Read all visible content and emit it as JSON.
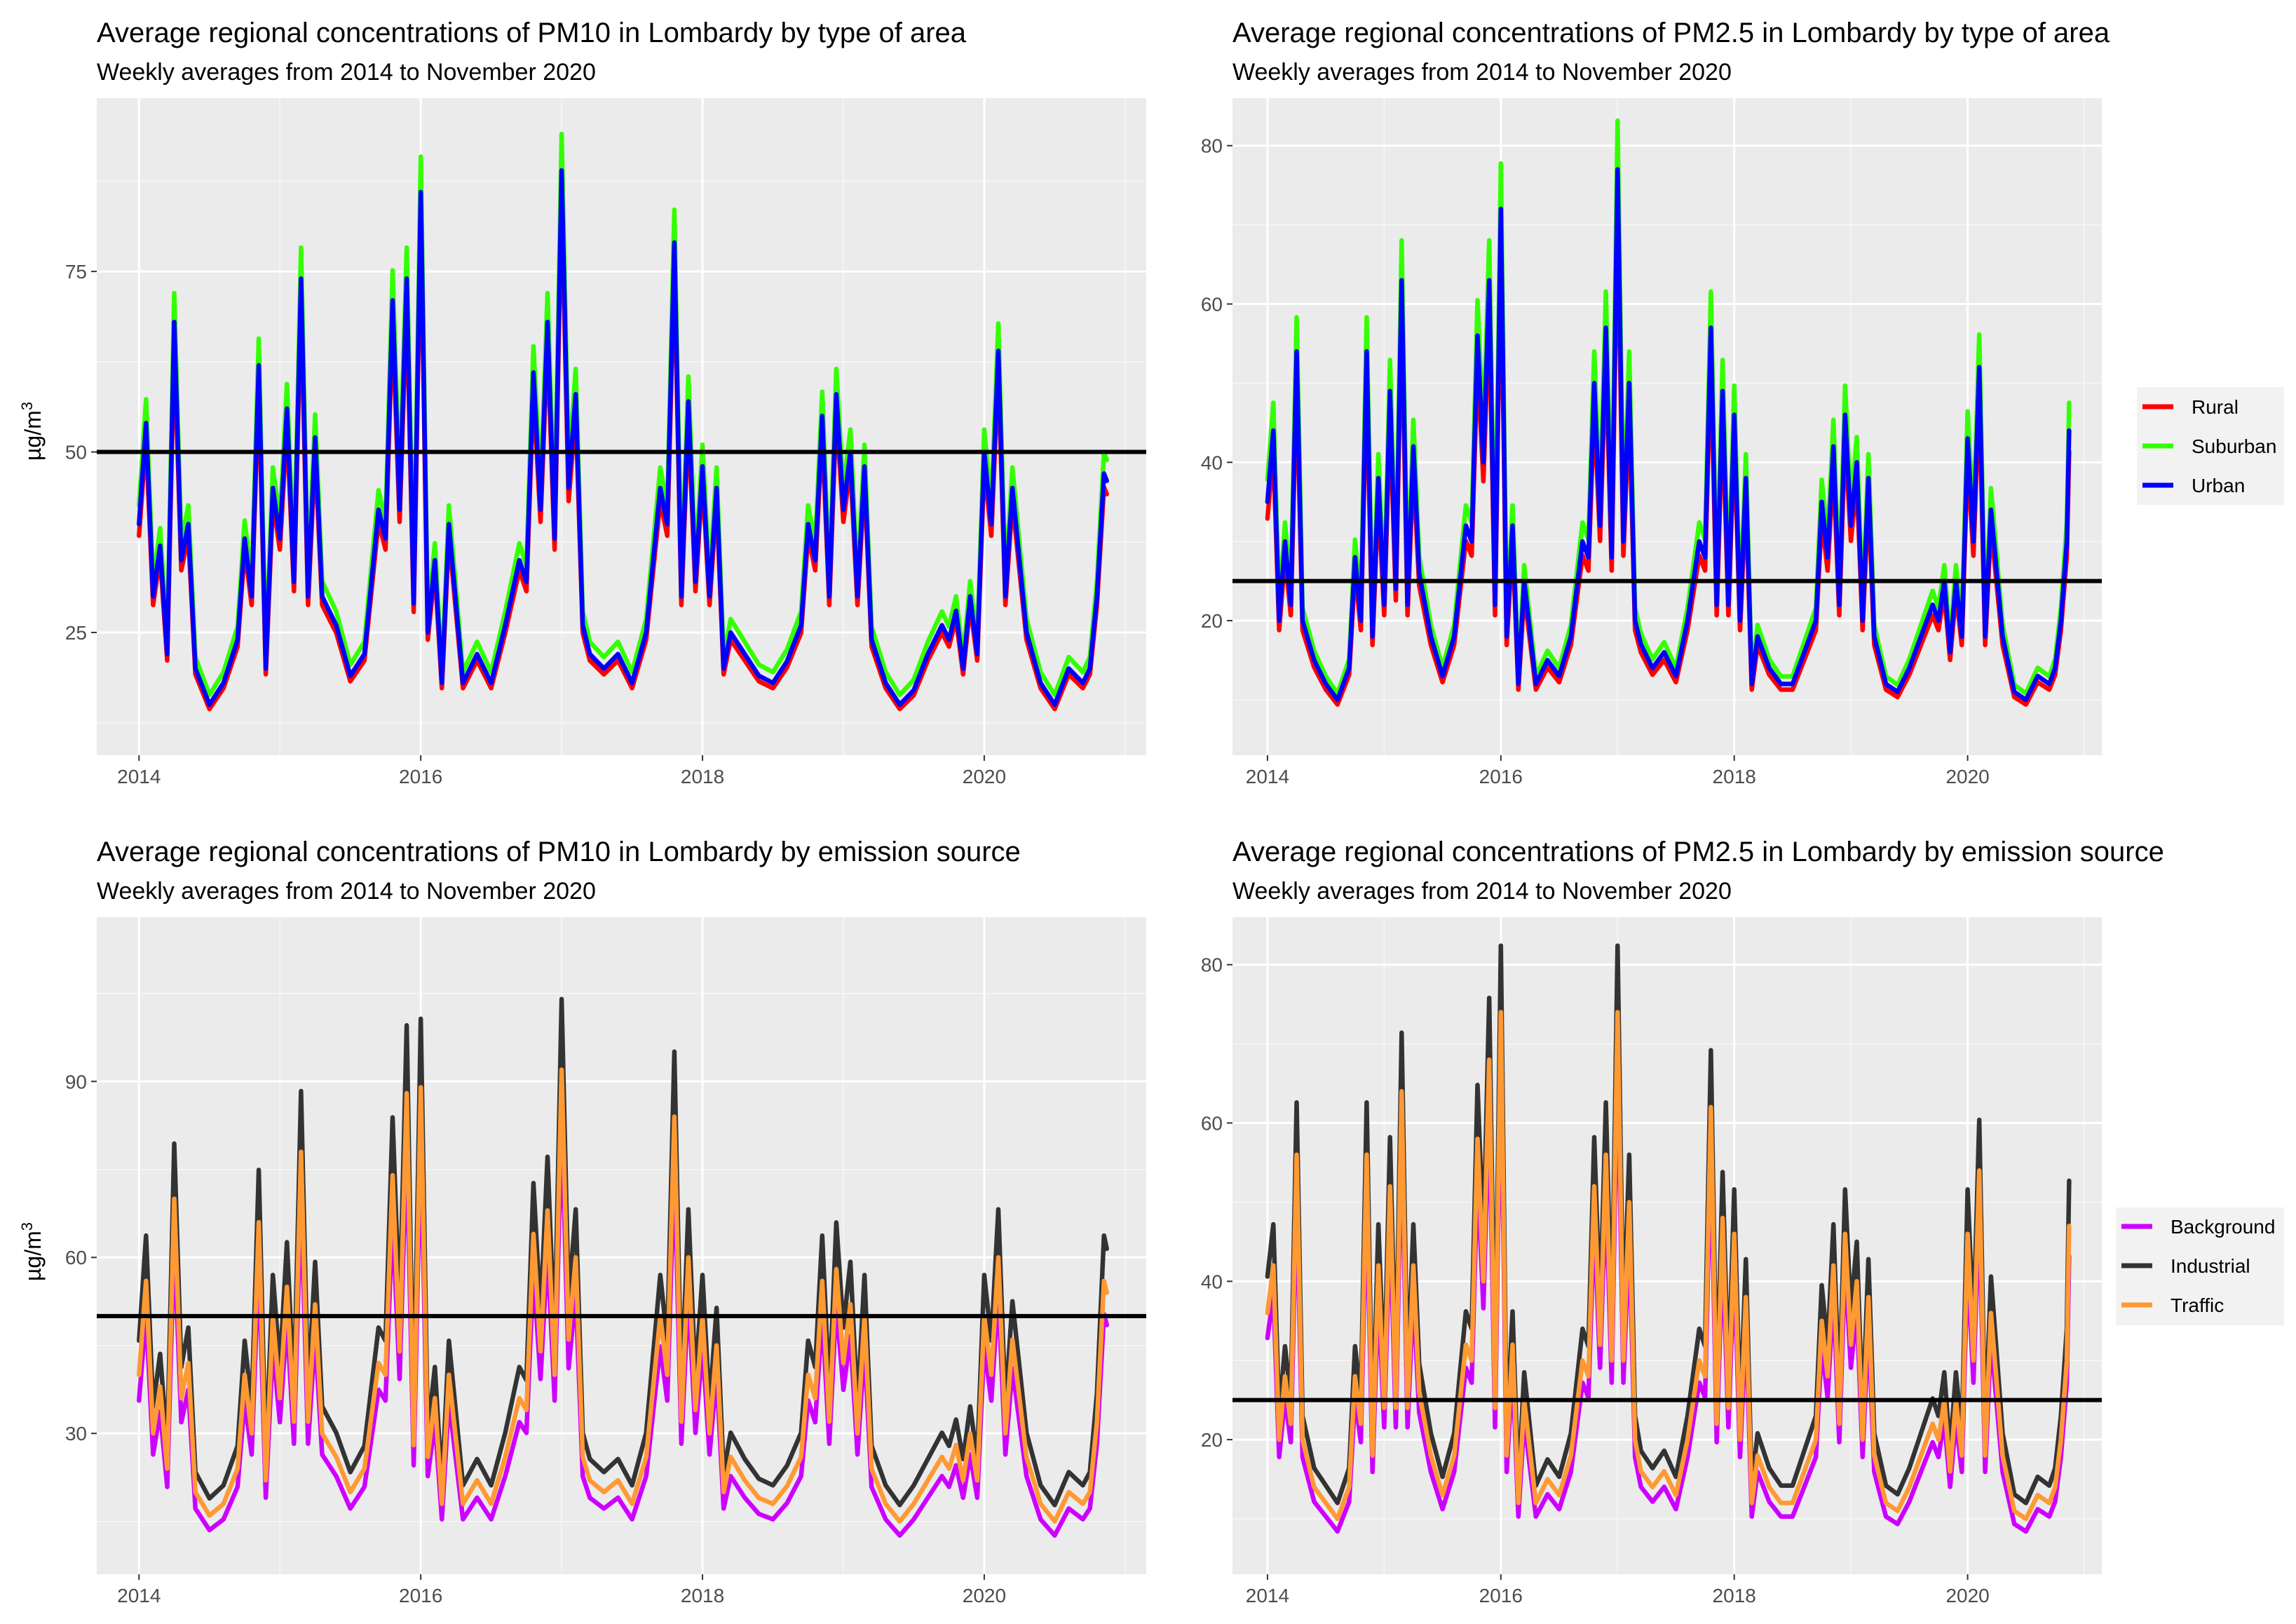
{
  "figure_caption": "",
  "chart_data": [
    {
      "type": "line",
      "title": "Average regional concentrations of PM10 in Lombardy by type of area",
      "subtitle": "Weekly averages from 2014 to November 2020",
      "xlabel": "",
      "ylabel": "µg/m",
      "ylabel_sup": "3",
      "xlim": [
        2013.7,
        2021.15
      ],
      "ylim": [
        8,
        99
      ],
      "xticks": [
        2014,
        2016,
        2018,
        2020
      ],
      "yticks": [
        25,
        50,
        75
      ],
      "threshold": 50,
      "grid": true,
      "legend": null,
      "series": [
        {
          "name": "Rural",
          "color": "#ff0000",
          "offset": 0.0,
          "scale": 0.96
        },
        {
          "name": "Suburban",
          "color": "#33ff00",
          "offset": 0.6,
          "scale": 1.05
        },
        {
          "name": "Urban",
          "color": "#0000ff",
          "offset": 0.0,
          "scale": 1.0
        }
      ],
      "base": {
        "x": [
          2014.0,
          2014.05,
          2014.1,
          2014.15,
          2014.2,
          2014.25,
          2014.3,
          2014.35,
          2014.4,
          2014.5,
          2014.6,
          2014.7,
          2014.75,
          2014.8,
          2014.85,
          2014.9,
          2014.95,
          2015.0,
          2015.05,
          2015.1,
          2015.15,
          2015.2,
          2015.25,
          2015.3,
          2015.4,
          2015.5,
          2015.6,
          2015.7,
          2015.75,
          2015.8,
          2015.85,
          2015.9,
          2015.95,
          2016.0,
          2016.05,
          2016.1,
          2016.15,
          2016.2,
          2016.3,
          2016.4,
          2016.5,
          2016.6,
          2016.7,
          2016.75,
          2016.8,
          2016.85,
          2016.9,
          2016.95,
          2017.0,
          2017.05,
          2017.1,
          2017.15,
          2017.2,
          2017.3,
          2017.4,
          2017.5,
          2017.6,
          2017.7,
          2017.75,
          2017.8,
          2017.85,
          2017.9,
          2017.95,
          2018.0,
          2018.05,
          2018.1,
          2018.15,
          2018.2,
          2018.3,
          2018.4,
          2018.5,
          2018.6,
          2018.7,
          2018.75,
          2018.8,
          2018.85,
          2018.9,
          2018.95,
          2019.0,
          2019.05,
          2019.1,
          2019.15,
          2019.2,
          2019.3,
          2019.4,
          2019.5,
          2019.6,
          2019.7,
          2019.75,
          2019.8,
          2019.85,
          2019.9,
          2019.95,
          2020.0,
          2020.05,
          2020.1,
          2020.15,
          2020.2,
          2020.3,
          2020.4,
          2020.5,
          2020.6,
          2020.7,
          2020.75,
          2020.8,
          2020.85,
          2020.87
        ],
        "y": [
          40,
          54,
          30,
          37,
          22,
          68,
          35,
          40,
          20,
          15,
          18,
          24,
          38,
          30,
          62,
          20,
          45,
          38,
          56,
          32,
          74,
          30,
          52,
          30,
          26,
          19,
          22,
          42,
          38,
          71,
          42,
          74,
          29,
          86,
          25,
          35,
          18,
          40,
          18,
          22,
          18,
          26,
          35,
          32,
          61,
          42,
          68,
          38,
          89,
          45,
          58,
          26,
          22,
          20,
          22,
          18,
          25,
          45,
          40,
          79,
          30,
          57,
          32,
          48,
          30,
          45,
          20,
          25,
          22,
          19,
          18,
          21,
          26,
          40,
          35,
          55,
          30,
          58,
          42,
          50,
          30,
          48,
          24,
          18,
          15,
          17,
          22,
          26,
          24,
          28,
          20,
          30,
          22,
          50,
          40,
          64,
          30,
          45,
          25,
          18,
          15,
          20,
          18,
          20,
          30,
          47,
          46
        ]
      }
    },
    {
      "type": "line",
      "title": "Average regional concentrations of PM2.5 in Lombardy by type of area",
      "subtitle": "Weekly averages from 2014 to November 2020",
      "xlabel": "",
      "ylabel": "",
      "xlim": [
        2013.7,
        2021.15
      ],
      "ylim": [
        3,
        86
      ],
      "xticks": [
        2014,
        2016,
        2018,
        2020
      ],
      "yticks": [
        20,
        40,
        60,
        80
      ],
      "threshold": 25,
      "grid": true,
      "legend": "right",
      "series": [
        {
          "name": "Rural",
          "color": "#ff0000",
          "offset": 0.0,
          "scale": 0.94
        },
        {
          "name": "Suburban",
          "color": "#33ff00",
          "offset": 0.0,
          "scale": 1.08
        },
        {
          "name": "Urban",
          "color": "#0000ff",
          "offset": 0.0,
          "scale": 1.0
        }
      ],
      "base": {
        "x": [
          2014.0,
          2014.05,
          2014.1,
          2014.15,
          2014.2,
          2014.25,
          2014.3,
          2014.4,
          2014.5,
          2014.6,
          2014.7,
          2014.75,
          2014.8,
          2014.85,
          2014.9,
          2014.95,
          2015.0,
          2015.05,
          2015.1,
          2015.15,
          2015.2,
          2015.25,
          2015.3,
          2015.4,
          2015.5,
          2015.6,
          2015.7,
          2015.75,
          2015.8,
          2015.85,
          2015.9,
          2015.95,
          2016.0,
          2016.05,
          2016.1,
          2016.15,
          2016.2,
          2016.3,
          2016.4,
          2016.5,
          2016.6,
          2016.7,
          2016.75,
          2016.8,
          2016.85,
          2016.9,
          2016.95,
          2017.0,
          2017.05,
          2017.1,
          2017.15,
          2017.2,
          2017.3,
          2017.4,
          2017.5,
          2017.6,
          2017.7,
          2017.75,
          2017.8,
          2017.85,
          2017.9,
          2017.95,
          2018.0,
          2018.05,
          2018.1,
          2018.15,
          2018.2,
          2018.3,
          2018.4,
          2018.5,
          2018.6,
          2018.7,
          2018.75,
          2018.8,
          2018.85,
          2018.9,
          2018.95,
          2019.0,
          2019.05,
          2019.1,
          2019.15,
          2019.2,
          2019.3,
          2019.4,
          2019.5,
          2019.6,
          2019.7,
          2019.75,
          2019.8,
          2019.85,
          2019.9,
          2019.95,
          2020.0,
          2020.05,
          2020.1,
          2020.15,
          2020.2,
          2020.3,
          2020.4,
          2020.5,
          2020.6,
          2020.7,
          2020.75,
          2020.8,
          2020.85,
          2020.87
        ],
        "y": [
          35,
          44,
          20,
          30,
          22,
          54,
          20,
          15,
          12,
          10,
          14,
          28,
          20,
          54,
          18,
          38,
          22,
          49,
          24,
          63,
          22,
          42,
          26,
          18,
          13,
          18,
          32,
          30,
          56,
          40,
          63,
          22,
          72,
          18,
          32,
          12,
          25,
          12,
          15,
          13,
          18,
          30,
          28,
          50,
          32,
          57,
          28,
          77,
          30,
          50,
          20,
          17,
          14,
          16,
          13,
          20,
          30,
          28,
          57,
          22,
          49,
          22,
          46,
          20,
          38,
          12,
          18,
          14,
          12,
          12,
          16,
          20,
          35,
          28,
          42,
          22,
          46,
          32,
          40,
          20,
          38,
          18,
          12,
          11,
          14,
          18,
          22,
          20,
          25,
          16,
          25,
          18,
          43,
          30,
          52,
          18,
          34,
          18,
          11,
          10,
          13,
          12,
          14,
          20,
          30,
          44
        ]
      }
    },
    {
      "type": "line",
      "title": "Average regional concentrations of PM10 in Lombardy by emission source",
      "subtitle": "Weekly averages from 2014 to November 2020",
      "xlabel": "",
      "ylabel": "µg/m",
      "ylabel_sup": "3",
      "xlim": [
        2013.7,
        2021.15
      ],
      "ylim": [
        6,
        118
      ],
      "xticks": [
        2014,
        2016,
        2018,
        2020
      ],
      "yticks": [
        30,
        60,
        90
      ],
      "threshold": 50,
      "grid": true,
      "legend": null,
      "series": [
        {
          "name": "Background",
          "color": "#cc00ff",
          "offset": -1.2,
          "scale": 0.92
        },
        {
          "name": "Industrial",
          "color": "#333333",
          "offset": 1.0,
          "scale": 1.12
        },
        {
          "name": "Traffic",
          "color": "#ff9933",
          "offset": 0.0,
          "scale": 1.0
        }
      ],
      "base": {
        "x": [
          2014.0,
          2014.05,
          2014.1,
          2014.15,
          2014.2,
          2014.25,
          2014.3,
          2014.35,
          2014.4,
          2014.5,
          2014.6,
          2014.7,
          2014.75,
          2014.8,
          2014.85,
          2014.9,
          2014.95,
          2015.0,
          2015.05,
          2015.1,
          2015.15,
          2015.2,
          2015.25,
          2015.3,
          2015.4,
          2015.5,
          2015.6,
          2015.7,
          2015.75,
          2015.8,
          2015.85,
          2015.9,
          2015.95,
          2016.0,
          2016.05,
          2016.1,
          2016.15,
          2016.2,
          2016.3,
          2016.4,
          2016.5,
          2016.6,
          2016.7,
          2016.75,
          2016.8,
          2016.85,
          2016.9,
          2016.95,
          2017.0,
          2017.05,
          2017.1,
          2017.15,
          2017.2,
          2017.3,
          2017.4,
          2017.5,
          2017.6,
          2017.7,
          2017.75,
          2017.8,
          2017.85,
          2017.9,
          2017.95,
          2018.0,
          2018.05,
          2018.1,
          2018.15,
          2018.2,
          2018.3,
          2018.4,
          2018.5,
          2018.6,
          2018.7,
          2018.75,
          2018.8,
          2018.85,
          2018.9,
          2018.95,
          2019.0,
          2019.05,
          2019.1,
          2019.15,
          2019.2,
          2019.3,
          2019.4,
          2019.5,
          2019.6,
          2019.7,
          2019.75,
          2019.8,
          2019.85,
          2019.9,
          2019.95,
          2020.0,
          2020.05,
          2020.1,
          2020.15,
          2020.2,
          2020.3,
          2020.4,
          2020.5,
          2020.6,
          2020.7,
          2020.75,
          2020.8,
          2020.85,
          2020.87
        ],
        "y": [
          40,
          56,
          30,
          38,
          24,
          70,
          36,
          42,
          20,
          16,
          18,
          24,
          40,
          30,
          66,
          22,
          50,
          36,
          55,
          32,
          78,
          32,
          52,
          30,
          26,
          20,
          24,
          42,
          40,
          74,
          44,
          88,
          28,
          89,
          26,
          36,
          18,
          40,
          18,
          22,
          18,
          26,
          36,
          34,
          64,
          44,
          68,
          40,
          92,
          46,
          60,
          26,
          22,
          20,
          22,
          18,
          26,
          50,
          40,
          84,
          32,
          60,
          34,
          50,
          30,
          45,
          20,
          26,
          22,
          19,
          18,
          21,
          26,
          40,
          36,
          56,
          32,
          58,
          42,
          52,
          30,
          50,
          24,
          18,
          15,
          18,
          22,
          26,
          24,
          28,
          22,
          30,
          22,
          50,
          40,
          60,
          30,
          46,
          26,
          18,
          15,
          20,
          18,
          20,
          32,
          56,
          54
        ]
      }
    },
    {
      "type": "line",
      "title": "Average regional concentrations of PM2.5 in Lombardy by emission source",
      "subtitle": "Weekly averages from 2014 to November 2020",
      "xlabel": "",
      "ylabel": "",
      "xlim": [
        2013.7,
        2021.15
      ],
      "ylim": [
        3,
        86
      ],
      "xticks": [
        2014,
        2016,
        2018,
        2020
      ],
      "yticks": [
        20,
        40,
        60,
        80
      ],
      "threshold": 25,
      "grid": true,
      "legend": "right",
      "series": [
        {
          "name": "Background",
          "color": "#cc00ff",
          "offset": -1.0,
          "scale": 0.94
        },
        {
          "name": "Industrial",
          "color": "#333333",
          "offset": 1.0,
          "scale": 1.1
        },
        {
          "name": "Traffic",
          "color": "#ff9933",
          "offset": 0.0,
          "scale": 1.0
        }
      ],
      "base": {
        "x": [
          2014.0,
          2014.05,
          2014.1,
          2014.15,
          2014.2,
          2014.25,
          2014.3,
          2014.4,
          2014.5,
          2014.6,
          2014.7,
          2014.75,
          2014.8,
          2014.85,
          2014.9,
          2014.95,
          2015.0,
          2015.05,
          2015.1,
          2015.15,
          2015.2,
          2015.25,
          2015.3,
          2015.4,
          2015.5,
          2015.6,
          2015.7,
          2015.75,
          2015.8,
          2015.85,
          2015.9,
          2015.95,
          2016.0,
          2016.05,
          2016.1,
          2016.15,
          2016.2,
          2016.3,
          2016.4,
          2016.5,
          2016.6,
          2016.7,
          2016.75,
          2016.8,
          2016.85,
          2016.9,
          2016.95,
          2017.0,
          2017.05,
          2017.1,
          2017.15,
          2017.2,
          2017.3,
          2017.4,
          2017.5,
          2017.6,
          2017.7,
          2017.75,
          2017.8,
          2017.85,
          2017.9,
          2017.95,
          2018.0,
          2018.05,
          2018.1,
          2018.15,
          2018.2,
          2018.3,
          2018.4,
          2018.5,
          2018.6,
          2018.7,
          2018.75,
          2018.8,
          2018.85,
          2018.9,
          2018.95,
          2019.0,
          2019.05,
          2019.1,
          2019.15,
          2019.2,
          2019.3,
          2019.4,
          2019.5,
          2019.6,
          2019.7,
          2019.75,
          2019.8,
          2019.85,
          2019.9,
          2019.95,
          2020.0,
          2020.05,
          2020.1,
          2020.15,
          2020.2,
          2020.3,
          2020.4,
          2020.5,
          2020.6,
          2020.7,
          2020.75,
          2020.8,
          2020.85,
          2020.87
        ],
        "y": [
          36,
          42,
          20,
          28,
          22,
          56,
          20,
          14,
          12,
          10,
          14,
          28,
          22,
          56,
          18,
          42,
          24,
          52,
          24,
          64,
          24,
          42,
          26,
          18,
          13,
          18,
          32,
          30,
          58,
          40,
          68,
          24,
          74,
          18,
          32,
          12,
          25,
          12,
          15,
          13,
          18,
          30,
          28,
          52,
          32,
          56,
          30,
          74,
          30,
          50,
          20,
          16,
          14,
          16,
          13,
          20,
          30,
          28,
          62,
          22,
          48,
          24,
          46,
          20,
          38,
          12,
          18,
          14,
          12,
          12,
          16,
          20,
          35,
          28,
          42,
          22,
          46,
          32,
          40,
          20,
          38,
          18,
          12,
          11,
          14,
          18,
          22,
          20,
          25,
          16,
          25,
          18,
          46,
          30,
          54,
          18,
          36,
          18,
          11,
          10,
          13,
          12,
          14,
          20,
          30,
          47
        ]
      }
    }
  ]
}
